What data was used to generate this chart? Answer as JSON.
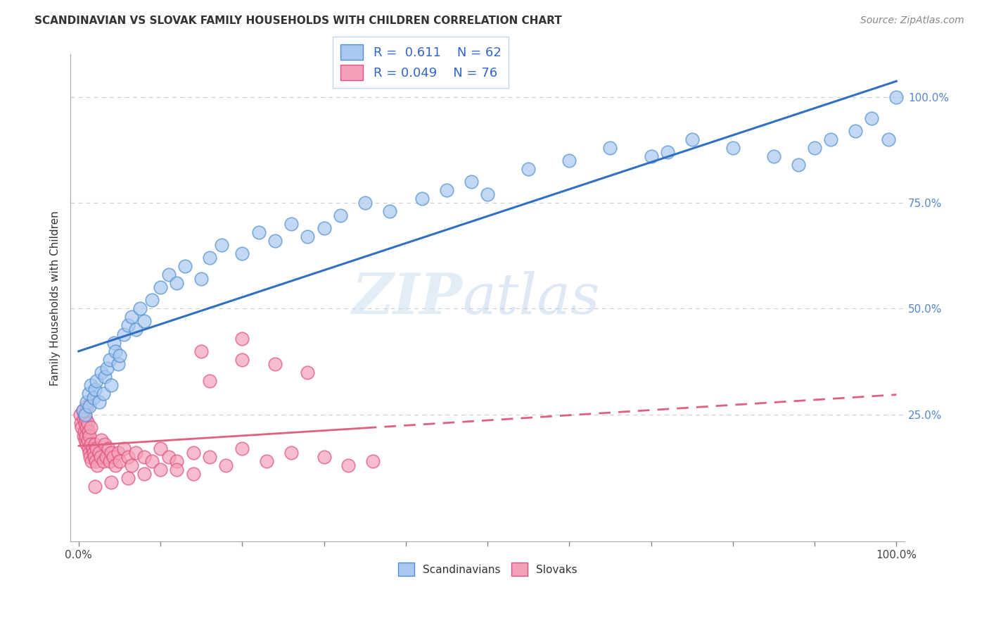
{
  "title": "SCANDINAVIAN VS SLOVAK FAMILY HOUSEHOLDS WITH CHILDREN CORRELATION CHART",
  "source_text": "Source: ZipAtlas.com",
  "ylabel": "Family Households with Children",
  "watermark": "ZIPatlas",
  "xtick_labels": [
    "0.0%",
    "100.0%"
  ],
  "ytick_labels": [
    "25.0%",
    "50.0%",
    "75.0%",
    "100.0%"
  ],
  "ytick_vals": [
    0.25,
    0.5,
    0.75,
    1.0
  ],
  "color_scandinavian": "#A8C8F0",
  "color_slovak": "#F4A0B8",
  "edge_color_scandinavian": "#5090D0",
  "edge_color_slovak": "#E05080",
  "line_color_scandinavian": "#3070C0",
  "line_color_slovak": "#E06080",
  "background_color": "#FFFFFF",
  "grid_color": "#CCCCCC",
  "title_fontsize": 11,
  "label_fontsize": 11,
  "tick_fontsize": 11,
  "legend_fontsize": 13,
  "source_fontsize": 10,
  "scand_x": [
    0.005,
    0.008,
    0.01,
    0.012,
    0.013,
    0.015,
    0.018,
    0.02,
    0.022,
    0.025,
    0.028,
    0.03,
    0.032,
    0.035,
    0.038,
    0.04,
    0.043,
    0.045,
    0.048,
    0.05,
    0.055,
    0.06,
    0.065,
    0.07,
    0.075,
    0.08,
    0.09,
    0.1,
    0.11,
    0.12,
    0.13,
    0.15,
    0.16,
    0.175,
    0.2,
    0.22,
    0.24,
    0.26,
    0.28,
    0.3,
    0.32,
    0.35,
    0.38,
    0.42,
    0.45,
    0.48,
    0.5,
    0.55,
    0.6,
    0.65,
    0.7,
    0.72,
    0.75,
    0.8,
    0.85,
    0.88,
    0.9,
    0.92,
    0.95,
    0.97,
    0.99,
    1.0
  ],
  "scand_y": [
    0.26,
    0.25,
    0.28,
    0.3,
    0.27,
    0.32,
    0.29,
    0.31,
    0.33,
    0.28,
    0.35,
    0.3,
    0.34,
    0.36,
    0.38,
    0.32,
    0.42,
    0.4,
    0.37,
    0.39,
    0.44,
    0.46,
    0.48,
    0.45,
    0.5,
    0.47,
    0.52,
    0.55,
    0.58,
    0.56,
    0.6,
    0.57,
    0.62,
    0.65,
    0.63,
    0.68,
    0.66,
    0.7,
    0.67,
    0.69,
    0.72,
    0.75,
    0.73,
    0.76,
    0.78,
    0.8,
    0.77,
    0.83,
    0.85,
    0.88,
    0.86,
    0.87,
    0.9,
    0.88,
    0.86,
    0.84,
    0.88,
    0.9,
    0.92,
    0.95,
    0.9,
    1.0
  ],
  "slovak_x": [
    0.002,
    0.003,
    0.004,
    0.005,
    0.006,
    0.006,
    0.007,
    0.007,
    0.008,
    0.008,
    0.009,
    0.009,
    0.01,
    0.01,
    0.01,
    0.011,
    0.011,
    0.012,
    0.012,
    0.013,
    0.013,
    0.014,
    0.015,
    0.015,
    0.016,
    0.017,
    0.018,
    0.019,
    0.02,
    0.021,
    0.022,
    0.023,
    0.025,
    0.027,
    0.028,
    0.03,
    0.032,
    0.034,
    0.036,
    0.038,
    0.04,
    0.042,
    0.045,
    0.048,
    0.05,
    0.055,
    0.06,
    0.065,
    0.07,
    0.08,
    0.09,
    0.1,
    0.11,
    0.12,
    0.14,
    0.16,
    0.18,
    0.2,
    0.23,
    0.26,
    0.3,
    0.33,
    0.36,
    0.16,
    0.2,
    0.24,
    0.28,
    0.12,
    0.14,
    0.1,
    0.08,
    0.06,
    0.04,
    0.02,
    0.2,
    0.15
  ],
  "slovak_y": [
    0.25,
    0.23,
    0.22,
    0.26,
    0.2,
    0.24,
    0.21,
    0.25,
    0.19,
    0.23,
    0.2,
    0.24,
    0.18,
    0.22,
    0.27,
    0.19,
    0.23,
    0.17,
    0.21,
    0.16,
    0.2,
    0.15,
    0.18,
    0.22,
    0.14,
    0.17,
    0.16,
    0.15,
    0.18,
    0.14,
    0.17,
    0.13,
    0.16,
    0.15,
    0.19,
    0.14,
    0.18,
    0.15,
    0.17,
    0.14,
    0.16,
    0.15,
    0.13,
    0.16,
    0.14,
    0.17,
    0.15,
    0.13,
    0.16,
    0.15,
    0.14,
    0.17,
    0.15,
    0.14,
    0.16,
    0.15,
    0.13,
    0.17,
    0.14,
    0.16,
    0.15,
    0.13,
    0.14,
    0.33,
    0.38,
    0.37,
    0.35,
    0.12,
    0.11,
    0.12,
    0.11,
    0.1,
    0.09,
    0.08,
    0.43,
    0.4
  ]
}
